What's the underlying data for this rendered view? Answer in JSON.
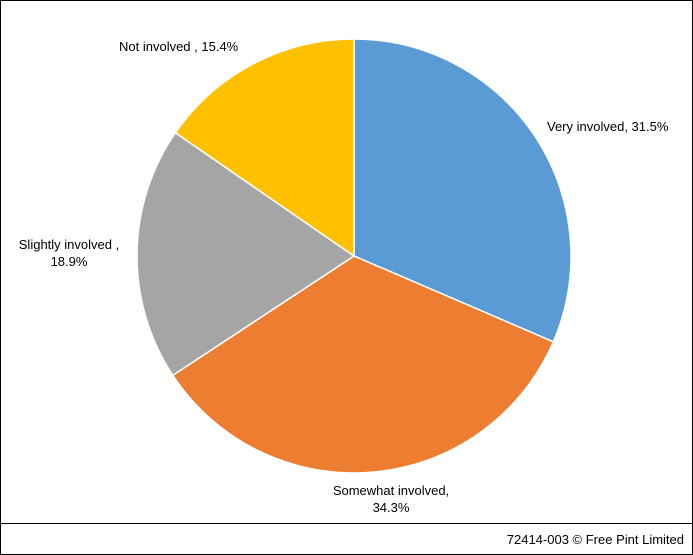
{
  "chart_data": {
    "type": "pie",
    "values": [
      31.5,
      34.3,
      18.9,
      15.4
    ],
    "value_labels": [
      "Very involved, 31.5%",
      "Somewhat involved, 34.3%",
      "Slightly involved , 18.9%",
      "Not involved , 15.4%"
    ],
    "colors": [
      "#5b9bd5",
      "#ed7d31",
      "#a5a5a5",
      "#ffc000"
    ]
  },
  "footer": "72414-003 © Free Pint Limited"
}
